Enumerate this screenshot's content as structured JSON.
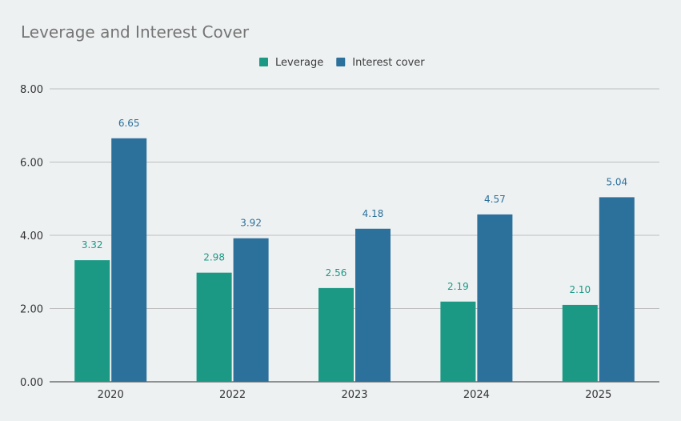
{
  "chart_data": {
    "type": "bar",
    "title": "Leverage and Interest Cover",
    "categories": [
      "2020",
      "2022",
      "2023",
      "2024",
      "2025"
    ],
    "series": [
      {
        "name": "Leverage",
        "values": [
          3.32,
          2.98,
          2.56,
          2.19,
          2.1
        ],
        "color": "#1b9985"
      },
      {
        "name": "Interest cover",
        "values": [
          6.65,
          3.92,
          4.18,
          4.57,
          5.04
        ],
        "color": "#2c709c"
      }
    ],
    "data_labels": [
      [
        "3.32",
        "2.98",
        "2.56",
        "2.19",
        "2.10"
      ],
      [
        "6.65",
        "3.92",
        "4.18",
        "4.57",
        "5.04"
      ]
    ],
    "xlabel": "",
    "ylabel": "",
    "ylim": [
      0,
      8
    ],
    "yticks": [
      "0.00",
      "2.00",
      "4.00",
      "6.00",
      "8.00"
    ],
    "grid": true,
    "legend_position": "top-center"
  }
}
